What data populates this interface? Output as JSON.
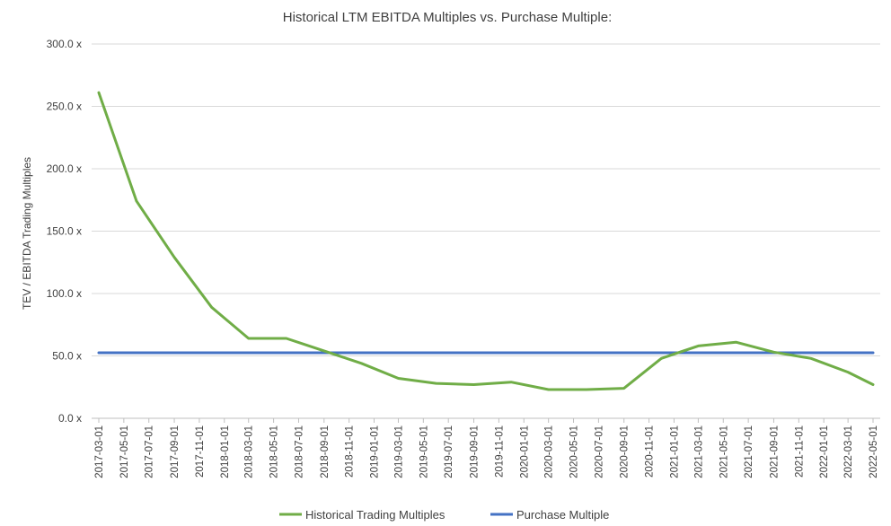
{
  "chart_data": {
    "type": "line",
    "title": "Historical LTM EBITDA Multiples vs. Purchase Multiple:",
    "ylabel": "TEV / EBITDA Trading Multiples",
    "xlabel": "",
    "ylim": [
      0,
      300
    ],
    "y_ticks": [
      "0.0 x",
      "50.0 x",
      "100.0 x",
      "150.0 x",
      "200.0 x",
      "250.0 x",
      "300.0 x"
    ],
    "categories": [
      "2017-03-01",
      "2017-05-01",
      "2017-07-01",
      "2017-09-01",
      "2017-11-01",
      "2018-01-01",
      "2018-03-01",
      "2018-05-01",
      "2018-07-01",
      "2018-09-01",
      "2018-11-01",
      "2019-01-01",
      "2019-03-01",
      "2019-05-01",
      "2019-07-01",
      "2019-09-01",
      "2019-11-01",
      "2020-01-01",
      "2020-03-01",
      "2020-05-01",
      "2020-07-01",
      "2020-09-01",
      "2020-11-01",
      "2021-01-01",
      "2021-03-01",
      "2021-05-01",
      "2021-07-01",
      "2021-09-01",
      "2021-11-01",
      "2022-01-01",
      "2022-03-01",
      "2022-05-01"
    ],
    "series": [
      {
        "name": "Historical Trading Multiples",
        "color": "#70ad47",
        "points": [
          {
            "x": "2017-03-01",
            "y": 261
          },
          {
            "x": "2017-06-01",
            "y": 174
          },
          {
            "x": "2017-09-01",
            "y": 129
          },
          {
            "x": "2017-12-01",
            "y": 89
          },
          {
            "x": "2018-03-01",
            "y": 64
          },
          {
            "x": "2018-06-01",
            "y": 64
          },
          {
            "x": "2018-09-01",
            "y": 54
          },
          {
            "x": "2018-12-01",
            "y": 44
          },
          {
            "x": "2019-03-01",
            "y": 32
          },
          {
            "x": "2019-06-01",
            "y": 28
          },
          {
            "x": "2019-09-01",
            "y": 27
          },
          {
            "x": "2019-12-01",
            "y": 29
          },
          {
            "x": "2020-03-01",
            "y": 23
          },
          {
            "x": "2020-06-01",
            "y": 23
          },
          {
            "x": "2020-09-01",
            "y": 24
          },
          {
            "x": "2020-12-01",
            "y": 48
          },
          {
            "x": "2021-03-01",
            "y": 58
          },
          {
            "x": "2021-06-01",
            "y": 61
          },
          {
            "x": "2021-09-01",
            "y": 53
          },
          {
            "x": "2021-12-01",
            "y": 48
          },
          {
            "x": "2022-03-01",
            "y": 37
          },
          {
            "x": "2022-05-01",
            "y": 27
          }
        ]
      },
      {
        "name": "Purchase Multiple",
        "color": "#4472c4",
        "points": [
          {
            "x": "2017-03-01",
            "y": 52.5
          },
          {
            "x": "2022-05-01",
            "y": 52.5
          }
        ]
      }
    ],
    "grid": true,
    "legend_position": "bottom"
  }
}
